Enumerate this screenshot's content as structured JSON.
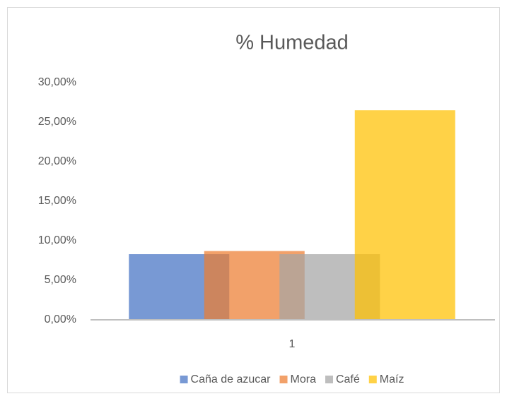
{
  "chart_data": {
    "type": "bar",
    "title": "% Humedad",
    "categories": [
      "1"
    ],
    "series": [
      {
        "name": "Caña de azucar",
        "color": "#4472c4",
        "values": [
          8.3
        ]
      },
      {
        "name": "Mora",
        "color": "#ed7d31",
        "values": [
          8.7
        ]
      },
      {
        "name": "Café",
        "color": "#a5a5a5",
        "values": [
          8.3
        ]
      },
      {
        "name": "Maíz",
        "color": "#ffc000",
        "values": [
          26.5
        ]
      }
    ],
    "ylim": [
      0,
      30
    ],
    "yticks": [
      {
        "value": 0,
        "label": "0,00%"
      },
      {
        "value": 5,
        "label": "5,00%"
      },
      {
        "value": 10,
        "label": "10,00%"
      },
      {
        "value": 15,
        "label": "15,00%"
      },
      {
        "value": 20,
        "label": "20,00%"
      },
      {
        "value": 25,
        "label": "25,00%"
      },
      {
        "value": 30,
        "label": "30,00%"
      }
    ],
    "legend": "bottom"
  }
}
